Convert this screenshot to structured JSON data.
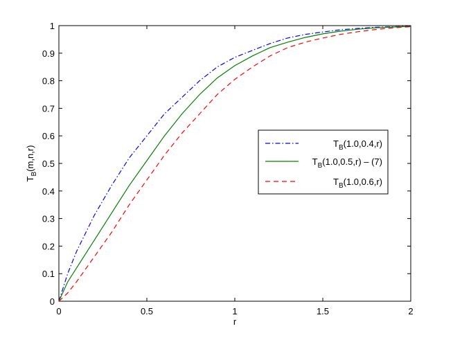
{
  "chart_data": {
    "type": "line",
    "title": "",
    "xlabel": "r",
    "ylabel": {
      "main": "T",
      "sub": "B",
      "rest": "(m,n,r)"
    },
    "xlim": [
      0,
      2
    ],
    "ylim": [
      0,
      1
    ],
    "x_ticks": [
      "0",
      "0.5",
      "1",
      "1.5",
      "2"
    ],
    "y_ticks": [
      "0",
      "0.1",
      "0.2",
      "0.3",
      "0.4",
      "0.5",
      "0.6",
      "0.7",
      "0.8",
      "0.9",
      "1"
    ],
    "grid": false,
    "legend_position": "right",
    "series": [
      {
        "name": "T_B(1.0,0.4,r)",
        "label": {
          "main": "T",
          "sub": "B",
          "rest": "(1.0,0.4,r)"
        },
        "color": "#0000ff",
        "dash": "dashdot",
        "x": [
          0,
          0.05,
          0.1,
          0.2,
          0.3,
          0.4,
          0.5,
          0.6,
          0.7,
          0.8,
          0.9,
          1.0,
          1.1,
          1.2,
          1.3,
          1.4,
          1.5,
          1.6,
          1.7,
          1.8,
          1.9,
          2.0
        ],
        "y": [
          0,
          0.1,
          0.18,
          0.31,
          0.42,
          0.52,
          0.6,
          0.68,
          0.74,
          0.8,
          0.85,
          0.885,
          0.91,
          0.935,
          0.955,
          0.968,
          0.977,
          0.985,
          0.99,
          0.994,
          0.996,
          0.998
        ]
      },
      {
        "name": "T_B(1.0,0.5,r) – (7)",
        "label": {
          "main": "T",
          "sub": "B",
          "rest": "(1.0,0.5,r) – (7)"
        },
        "color": "#008000",
        "dash": "solid",
        "x": [
          0,
          0.05,
          0.1,
          0.2,
          0.3,
          0.4,
          0.5,
          0.6,
          0.7,
          0.8,
          0.9,
          1.0,
          1.1,
          1.2,
          1.3,
          1.4,
          1.5,
          1.6,
          1.7,
          1.8,
          1.9,
          2.0
        ],
        "y": [
          0,
          0.07,
          0.12,
          0.22,
          0.32,
          0.42,
          0.51,
          0.6,
          0.68,
          0.75,
          0.81,
          0.855,
          0.89,
          0.92,
          0.94,
          0.957,
          0.97,
          0.98,
          0.987,
          0.992,
          0.995,
          0.997
        ]
      },
      {
        "name": "T_B(1.0,0.6,r)",
        "label": {
          "main": "T",
          "sub": "B",
          "rest": "(1.0,0.6,r)"
        },
        "color": "#ff0000",
        "dash": "dashed",
        "x": [
          0,
          0.05,
          0.1,
          0.2,
          0.3,
          0.4,
          0.5,
          0.6,
          0.7,
          0.8,
          0.9,
          1.0,
          1.1,
          1.2,
          1.3,
          1.4,
          1.5,
          1.6,
          1.7,
          1.8,
          1.9,
          2.0
        ],
        "y": [
          0,
          0.03,
          0.07,
          0.16,
          0.25,
          0.35,
          0.44,
          0.53,
          0.61,
          0.68,
          0.75,
          0.805,
          0.85,
          0.89,
          0.92,
          0.94,
          0.955,
          0.968,
          0.978,
          0.986,
          0.992,
          0.996
        ]
      }
    ]
  }
}
